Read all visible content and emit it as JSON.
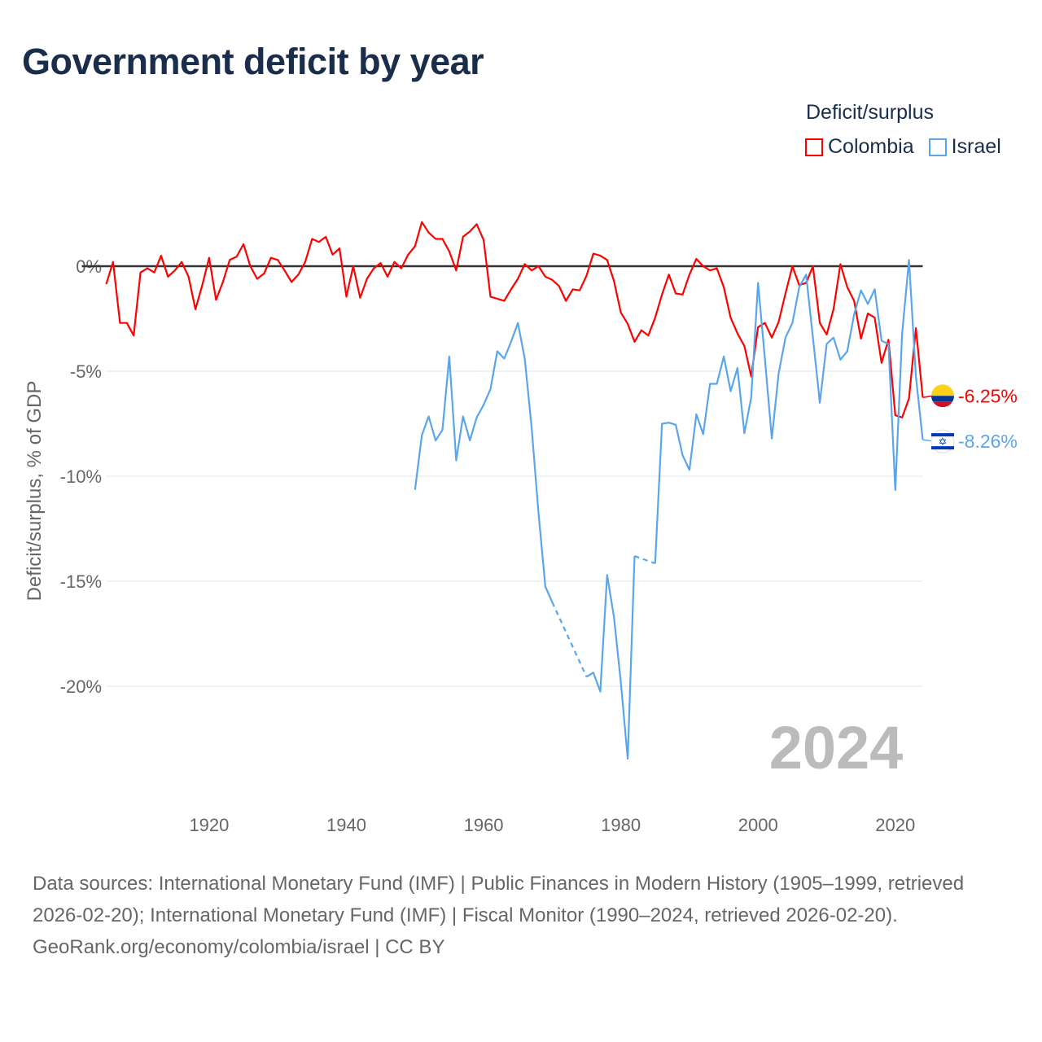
{
  "title": "Government deficit by year",
  "legend": {
    "title": "Deficit/surplus",
    "items": [
      {
        "name": "Colombia",
        "color": "#ff0000"
      },
      {
        "name": "Israel",
        "color": "#5aa5ec"
      }
    ]
  },
  "footer": {
    "sources": "Data sources: International Monetary Fund (IMF) | Public Finances in Modern History (1905–1999, retrieved 2026-02-20); International Monetary Fund (IMF) | Fiscal Monitor (1990–2024, retrieved 2026-02-20).",
    "credit": "GeoRank.org/economy/colombia/israel | CC BY"
  },
  "chart_data": {
    "type": "line",
    "title": "Government deficit by year",
    "ylabel": "Deficit/surplus, % of GDP",
    "xlabel": "",
    "xlim": [
      1905,
      2024
    ],
    "ylim": [
      -24,
      2.5
    ],
    "x_ticks": [
      {
        "value": 1920,
        "label": "1920"
      },
      {
        "value": 1940,
        "label": "1940"
      },
      {
        "value": 1960,
        "label": "1960"
      },
      {
        "value": 1980,
        "label": "1980"
      },
      {
        "value": 2000,
        "label": "2000"
      },
      {
        "value": 2020,
        "label": "2020"
      }
    ],
    "y_ticks": [
      {
        "value": 0,
        "label": "0%"
      },
      {
        "value": -5,
        "label": "-5%"
      },
      {
        "value": -10,
        "label": "-10%"
      },
      {
        "value": -15,
        "label": "-15%"
      },
      {
        "value": -20,
        "label": "-20%"
      }
    ],
    "current_year": "2024",
    "series": [
      {
        "name": "Colombia",
        "color": "#ff0000",
        "start_year": 1905,
        "end_label": "-6.25%",
        "flag": "colombia-flag",
        "values": [
          -0.85,
          0.2,
          -2.7,
          -2.7,
          -3.3,
          -0.3,
          -0.1,
          -0.3,
          0.5,
          -0.5,
          -0.2,
          0.2,
          -0.5,
          -2.05,
          -0.9,
          0.4,
          -1.6,
          -0.75,
          0.3,
          0.45,
          1.05,
          0,
          -0.6,
          -0.35,
          0.4,
          0.3,
          -0.2,
          -0.75,
          -0.4,
          0.2,
          1.3,
          1.15,
          1.4,
          0.55,
          0.85,
          -1.45,
          0,
          -1.5,
          -0.6,
          -0.1,
          0.15,
          -0.5,
          0.2,
          -0.1,
          0.55,
          0.95,
          2.1,
          1.6,
          1.3,
          1.3,
          0.7,
          -0.2,
          1.4,
          1.65,
          2.0,
          1.25,
          -1.45,
          -1.55,
          -1.65,
          -1.1,
          -0.6,
          0.1,
          -0.2,
          0,
          -0.5,
          -0.65,
          -0.95,
          -1.65,
          -1.1,
          -1.15,
          -0.45,
          0.6,
          0.5,
          0.3,
          -0.7,
          -2.2,
          -2.75,
          -3.6,
          -3.05,
          -3.3,
          -2.45,
          -1.35,
          -0.4,
          -1.3,
          -1.35,
          -0.4,
          0.35,
          0,
          -0.2,
          -0.1,
          -1.0,
          -2.45,
          -3.2,
          -3.8,
          -5.25,
          -2.9,
          -2.7,
          -3.4,
          -2.65,
          -1.3,
          0,
          -0.9,
          -0.8,
          0,
          -2.7,
          -3.25,
          -2.05,
          0.1,
          -1.0,
          -1.65,
          -3.45,
          -2.25,
          -2.45,
          -4.6,
          -3.5,
          -7.1,
          -7.2,
          -6.3,
          -2.95,
          -6.25
        ]
      },
      {
        "name": "Israel",
        "color": "#5aa5ec",
        "start_year": 1950,
        "end_label": "-8.26%",
        "flag": "israel-flag",
        "values": [
          -10.65,
          -8.05,
          -7.15,
          -8.3,
          -7.8,
          -4.3,
          -9.25,
          -7.15,
          -8.3,
          -7.2,
          -6.6,
          -5.85,
          -4.05,
          -4.4,
          -3.6,
          -2.7,
          -4.4,
          -7.7,
          -11.75,
          -15.25,
          -16.0,
          null,
          null,
          null,
          null,
          -19.55,
          -19.35,
          -20.25,
          -14.7,
          -16.7,
          -19.8,
          -23.45,
          -13.8,
          null,
          null,
          -14.15,
          -7.5,
          -7.45,
          -7.55,
          -9.0,
          -9.7,
          -7.05,
          -8.0,
          -5.6,
          -5.6,
          -4.3,
          -5.95,
          -4.85,
          -7.95,
          -6.25,
          -0.8,
          -4.4,
          -8.2,
          -5.1,
          -3.4,
          -2.7,
          -1.0,
          -0.4,
          -3.4,
          -6.5,
          -3.7,
          -3.4,
          -4.45,
          -4.05,
          -2.3,
          -1.15,
          -1.8,
          -1.1,
          -3.55,
          -3.7,
          -10.65,
          -3.2,
          0.3,
          -5.25,
          -8.26
        ]
      }
    ]
  }
}
